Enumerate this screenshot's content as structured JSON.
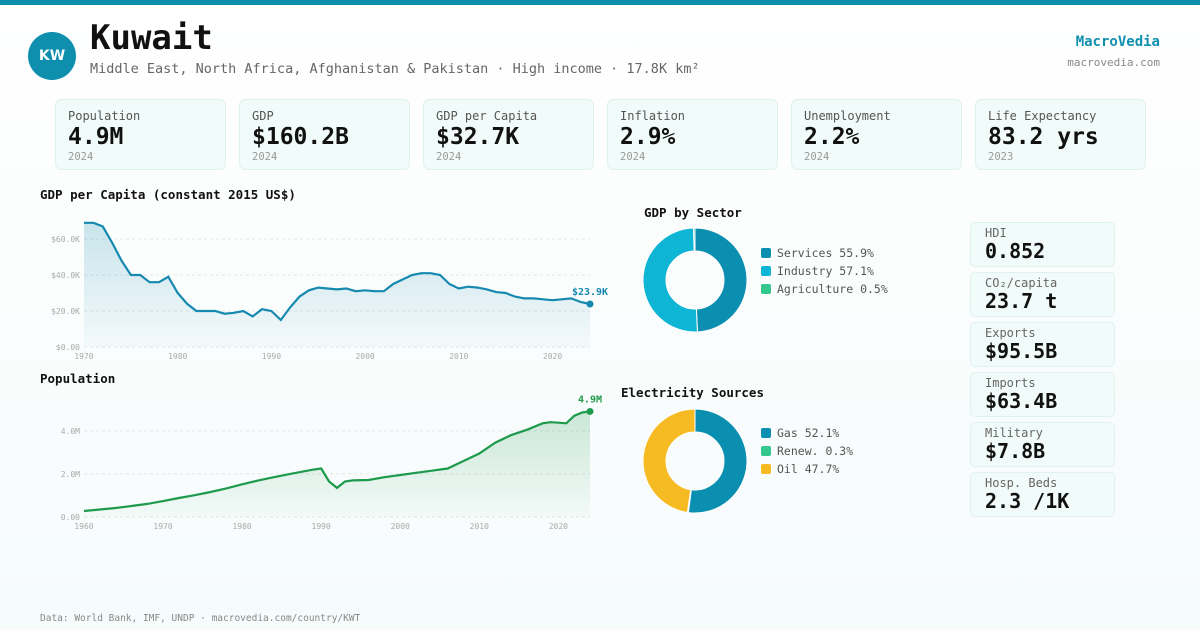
{
  "header": {
    "badge": "KW",
    "title": "Kuwait",
    "subtitle": "Middle East, North Africa, Afghanistan & Pakistan · High income · 17.8K km²",
    "brand": "MacroVedia",
    "brand_url": "macrovedia.com"
  },
  "kpis": [
    {
      "label": "Population",
      "value": "4.9M",
      "year": "2024"
    },
    {
      "label": "GDP",
      "value": "$160.2B",
      "year": "2024"
    },
    {
      "label": "GDP per Capita",
      "value": "$32.7K",
      "year": "2024"
    },
    {
      "label": "Inflation",
      "value": "2.9%",
      "year": "2024"
    },
    {
      "label": "Unemployment",
      "value": "2.2%",
      "year": "2024"
    },
    {
      "label": "Life Expectancy",
      "value": "83.2 yrs",
      "year": "2023"
    }
  ],
  "side_stats": [
    {
      "label": "HDI",
      "value": "0.852"
    },
    {
      "label": "CO₂/capita",
      "value": "23.7 t"
    },
    {
      "label": "Exports",
      "value": "$95.5B"
    },
    {
      "label": "Imports",
      "value": "$63.4B"
    },
    {
      "label": "Military",
      "value": "$7.8B"
    },
    {
      "label": "Hosp. Beds",
      "value": "2.3 /1K"
    }
  ],
  "colors": {
    "accent": "#0e8fae",
    "gdp_line": "#1589ae",
    "pop_line": "#1e9a4c",
    "services": "#0b8fb0",
    "industry": "#0fb5d4",
    "agriculture": "#34c78e",
    "gas": "#0b8fb0",
    "renew": "#34c78e",
    "oil": "#f6bb23"
  },
  "chart_data": [
    {
      "type": "area",
      "title": "GDP per Capita (constant 2015 US$)",
      "x": [
        1970,
        1971,
        1972,
        1973,
        1974,
        1975,
        1976,
        1977,
        1978,
        1979,
        1980,
        1981,
        1982,
        1983,
        1984,
        1985,
        1986,
        1987,
        1988,
        1989,
        1990,
        1991,
        1992,
        1993,
        1994,
        1995,
        1996,
        1997,
        1998,
        1999,
        2000,
        2001,
        2002,
        2003,
        2004,
        2005,
        2006,
        2007,
        2008,
        2009,
        2010,
        2011,
        2012,
        2013,
        2014,
        2015,
        2016,
        2017,
        2018,
        2019,
        2020,
        2021,
        2022,
        2023,
        2024
      ],
      "values": [
        69000,
        69000,
        67000,
        58000,
        48000,
        40000,
        40000,
        36000,
        36000,
        39000,
        30000,
        24000,
        20000,
        20000,
        20000,
        18500,
        19000,
        20000,
        17000,
        21000,
        20000,
        15000,
        22000,
        28000,
        31500,
        33000,
        32500,
        32000,
        32500,
        31000,
        31500,
        31000,
        31000,
        35000,
        37500,
        40000,
        41000,
        41000,
        40000,
        35000,
        32500,
        33500,
        33000,
        32000,
        30500,
        30000,
        28000,
        27000,
        27000,
        26500,
        26000,
        26500,
        27000,
        25000,
        23900
      ],
      "x_ticks": [
        "1970",
        "1980",
        "1990",
        "2000",
        "2010",
        "2020"
      ],
      "y_ticks": [
        "$0.00",
        "$20.0K",
        "$40.0K",
        "$60.0K"
      ],
      "ylim": [
        0,
        70000
      ],
      "end_label": "$23.9K"
    },
    {
      "type": "area",
      "title": "Population",
      "x": [
        1960,
        1962,
        1964,
        1966,
        1968,
        1970,
        1972,
        1974,
        1976,
        1978,
        1980,
        1982,
        1984,
        1986,
        1988,
        1989,
        1990,
        1991,
        1992,
        1993,
        1994,
        1996,
        1998,
        2000,
        2002,
        2004,
        2006,
        2008,
        2010,
        2012,
        2014,
        2016,
        2018,
        2019,
        2020,
        2021,
        2022,
        2023,
        2024
      ],
      "values": [
        0.28,
        0.35,
        0.42,
        0.51,
        0.61,
        0.74,
        0.88,
        1.01,
        1.16,
        1.33,
        1.52,
        1.69,
        1.85,
        1.99,
        2.13,
        2.2,
        2.25,
        1.65,
        1.35,
        1.65,
        1.7,
        1.72,
        1.85,
        1.95,
        2.05,
        2.15,
        2.25,
        2.6,
        2.95,
        3.45,
        3.8,
        4.05,
        4.35,
        4.4,
        4.38,
        4.35,
        4.7,
        4.85,
        4.9
      ],
      "x_ticks": [
        "1960",
        "1970",
        "1980",
        "1990",
        "2000",
        "2010",
        "2020"
      ],
      "y_ticks": [
        "0.00",
        "2.0M",
        "4.0M"
      ],
      "ylim": [
        0,
        5.2
      ],
      "end_label": "4.9M"
    },
    {
      "type": "pie",
      "title": "GDP by Sector",
      "labels": [
        "Services 55.9%",
        "Industry 57.1%",
        "Agriculture 0.5%"
      ],
      "values": [
        55.9,
        57.1,
        0.5
      ]
    },
    {
      "type": "pie",
      "title": "Electricity Sources",
      "labels": [
        "Gas 52.1%",
        "Renew. 0.3%",
        "Oil 47.7%"
      ],
      "values": [
        52.1,
        0.3,
        47.7
      ]
    }
  ],
  "footer": "Data: World Bank, IMF, UNDP · macrovedia.com/country/KWT"
}
